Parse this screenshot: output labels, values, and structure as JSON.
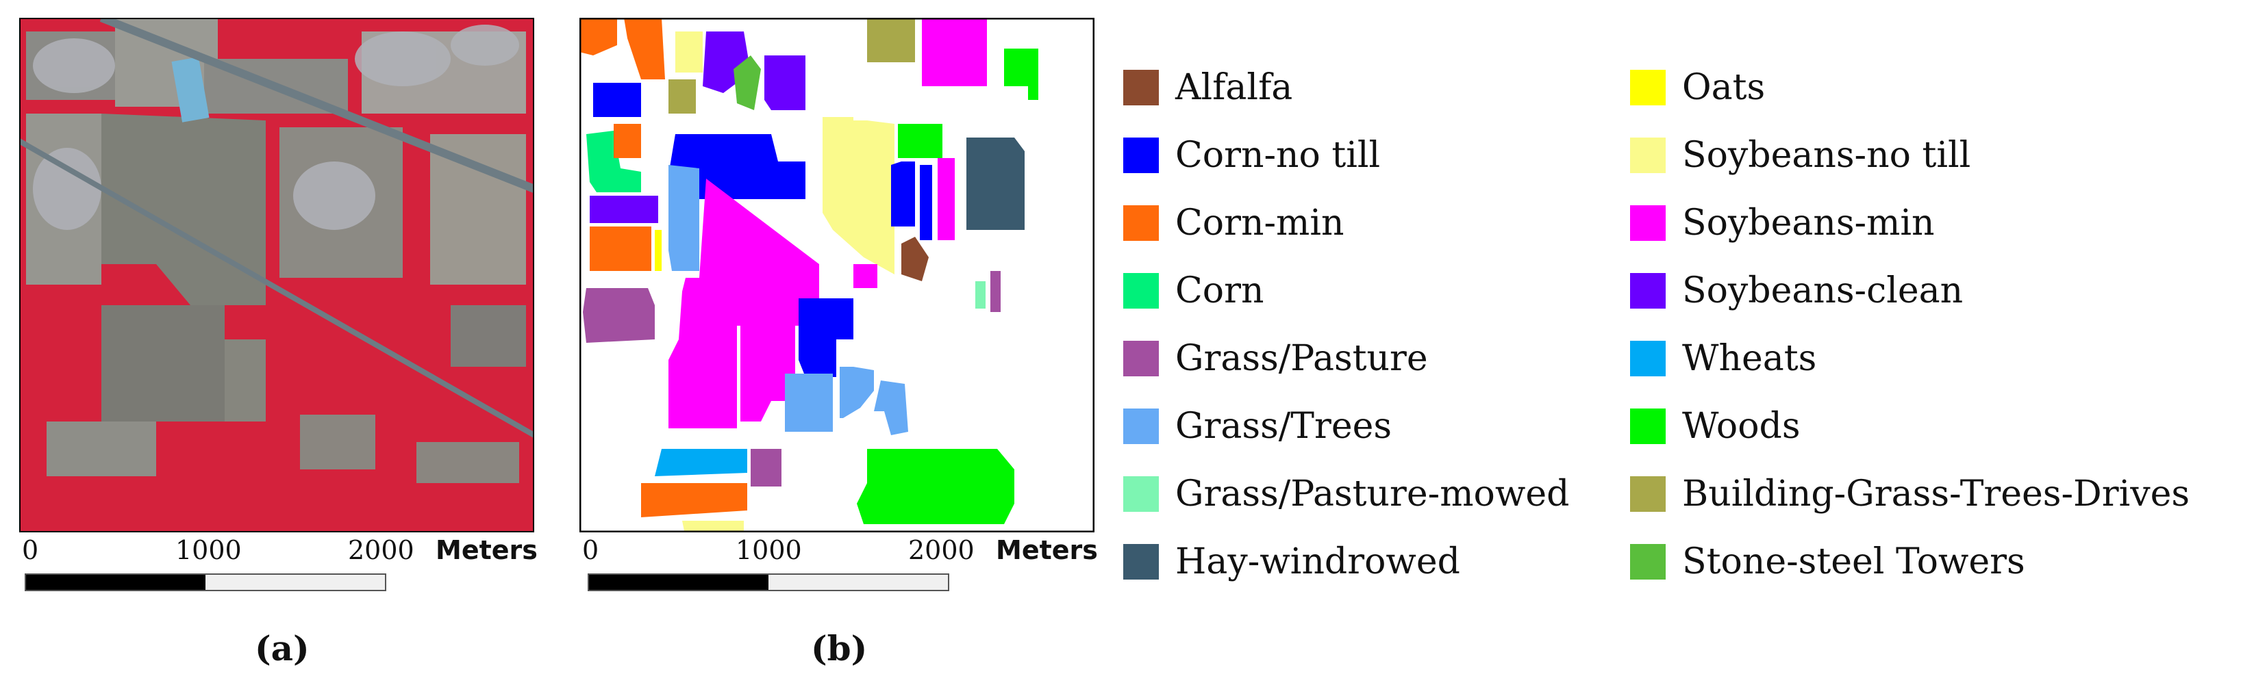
{
  "panels": {
    "a": {
      "label": "(a)",
      "description_name": "false-color composite"
    },
    "b": {
      "label": "(b)"
    }
  },
  "scale_bar": {
    "ticks": [
      "0",
      "1000",
      "2000"
    ],
    "unit": "Meters",
    "filled_fraction": 0.5
  },
  "legend": {
    "items": [
      {
        "label": "Alfalfa",
        "color": "#8B4A2E"
      },
      {
        "label": "Corn-no till",
        "color": "#0000FF"
      },
      {
        "label": "Corn-min",
        "color": "#FF6A0A"
      },
      {
        "label": "Corn",
        "color": "#00F07A"
      },
      {
        "label": "Grass/Pasture",
        "color": "#A24FA0"
      },
      {
        "label": "Grass/Trees",
        "color": "#66AAF5"
      },
      {
        "label": "Grass/Pasture-mowed",
        "color": "#7DF5B2"
      },
      {
        "label": "Hay-windrowed",
        "color": "#3A5A6E"
      },
      {
        "label": "Oats",
        "color": "#FFFF00"
      },
      {
        "label": "Soybeans-no till",
        "color": "#FAFA8C"
      },
      {
        "label": "Soybeans-min",
        "color": "#FF00FF"
      },
      {
        "label": "Soybeans-clean",
        "color": "#6A00FF"
      },
      {
        "label": "Wheats",
        "color": "#00AAF5"
      },
      {
        "label": "Woods",
        "color": "#00F500"
      },
      {
        "label": "Building-Grass-Trees-Drives",
        "color": "#A8A84A"
      },
      {
        "label": "Stone-steel Towers",
        "color": "#5ABE3C"
      }
    ]
  }
}
